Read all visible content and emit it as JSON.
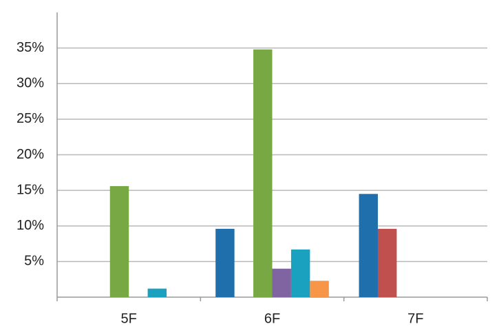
{
  "chart_data": {
    "type": "bar",
    "categories": [
      "5F",
      "6F",
      "7F"
    ],
    "series": [
      {
        "color": "#1f6fad",
        "values": [
          null,
          9.6,
          14.5
        ]
      },
      {
        "color": "#c0504d",
        "values": [
          null,
          null,
          9.6
        ]
      },
      {
        "color": "#77a844",
        "values": [
          15.6,
          34.8,
          null
        ]
      },
      {
        "color": "#8064a2",
        "values": [
          null,
          4.0,
          null
        ]
      },
      {
        "color": "#1ba1c0",
        "values": [
          1.2,
          6.7,
          null
        ]
      },
      {
        "color": "#f79646",
        "values": [
          null,
          2.3,
          null
        ]
      }
    ],
    "ylim": [
      0,
      40
    ],
    "yticks": [
      {
        "value": 5,
        "label": "5%"
      },
      {
        "value": 10,
        "label": "10%"
      },
      {
        "value": 15,
        "label": "15%"
      },
      {
        "value": 20,
        "label": "20%"
      },
      {
        "value": 25,
        "label": "25%"
      },
      {
        "value": 30,
        "label": "30%"
      },
      {
        "value": 35,
        "label": "35%"
      }
    ],
    "grid": true
  }
}
